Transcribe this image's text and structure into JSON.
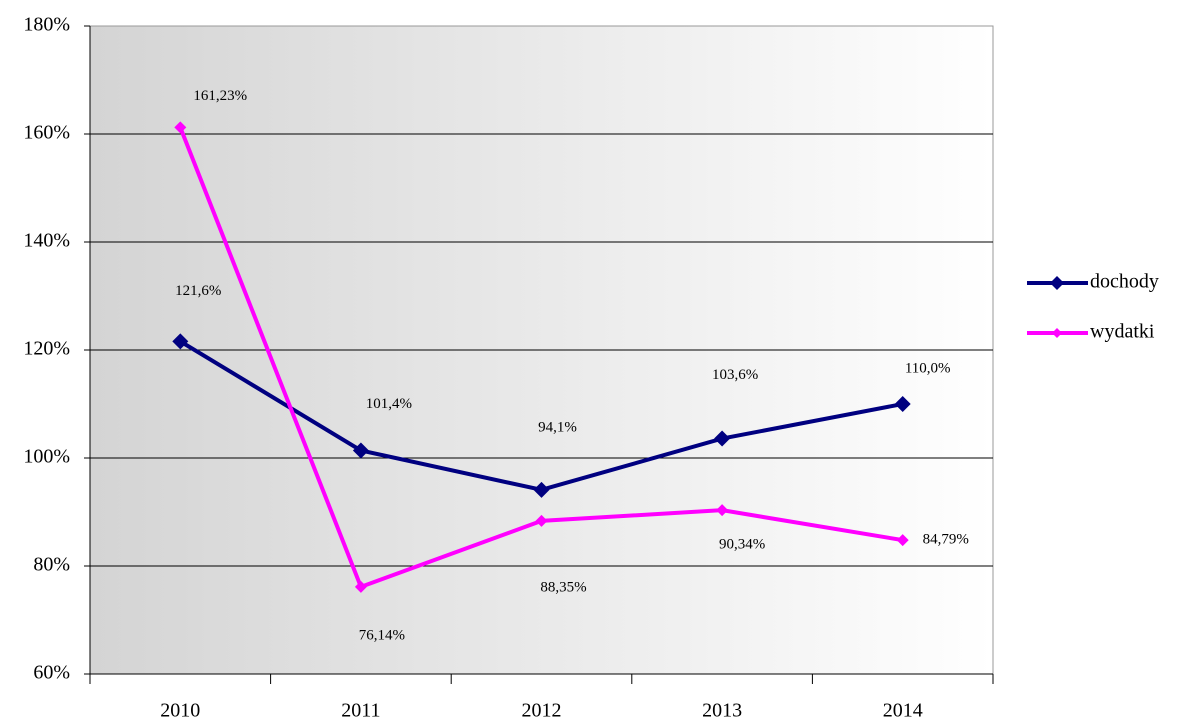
{
  "chart_data": {
    "type": "line",
    "categories": [
      "2010",
      "2011",
      "2012",
      "2013",
      "2014"
    ],
    "series": [
      {
        "name": "dochody",
        "color": "#000080",
        "values": [
          121.6,
          101.4,
          94.1,
          103.6,
          110.0
        ],
        "value_labels": [
          "121,6%",
          "101,4%",
          "94,1%",
          "103,6%",
          "110,0%"
        ]
      },
      {
        "name": "wydatki",
        "color": "#ff00ff",
        "values": [
          161.23,
          76.14,
          88.35,
          90.34,
          84.79
        ],
        "value_labels": [
          "161,23%",
          "76,14%",
          "88,35%",
          "90,34%",
          "84,79%"
        ]
      }
    ],
    "ylim": [
      60,
      180
    ],
    "yticks": [
      {
        "value": 60,
        "label": "60%"
      },
      {
        "value": 80,
        "label": "80%"
      },
      {
        "value": 100,
        "label": "100%"
      },
      {
        "value": 120,
        "label": "120%"
      },
      {
        "value": 140,
        "label": "140%"
      },
      {
        "value": 160,
        "label": "160%"
      },
      {
        "value": 180,
        "label": "180%"
      }
    ],
    "grid": true,
    "legend": "right"
  }
}
